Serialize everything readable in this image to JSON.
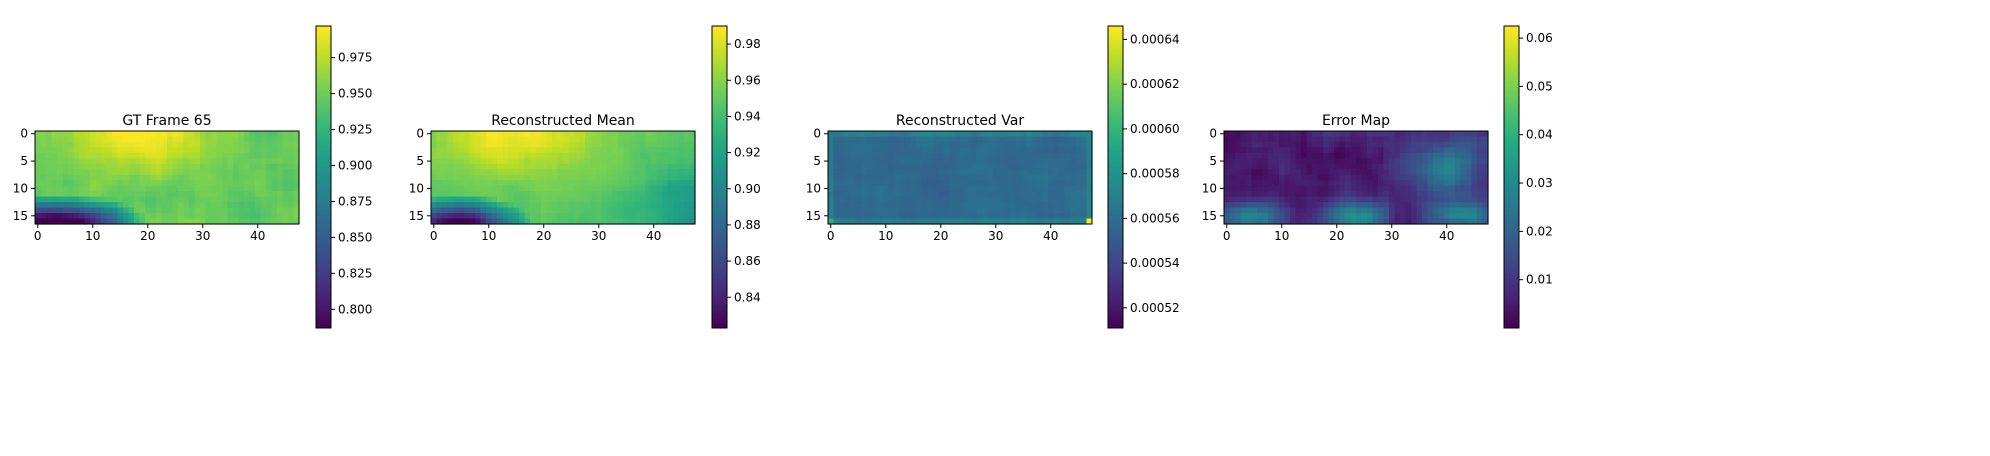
{
  "chart_data": [
    {
      "type": "heatmap",
      "title": "GT Frame 65",
      "colormap": "viridis",
      "grid_shape": [
        17,
        48
      ],
      "vmin": 0.787,
      "vmax": 0.997,
      "x_ticks": [
        "0",
        "10",
        "20",
        "30",
        "40"
      ],
      "y_ticks": [
        "0",
        "5",
        "10",
        "15"
      ],
      "colorbar_ticks": [
        "0.800",
        "0.825",
        "0.850",
        "0.875",
        "0.900",
        "0.925",
        "0.950",
        "0.975"
      ],
      "xlim": [
        0,
        48
      ],
      "ylim": [
        0,
        17
      ],
      "pattern": "mostly high values (~0.95) with yellow band along top center, dark blue/purple region in lower-left corner"
    },
    {
      "type": "heatmap",
      "title": "Reconstructed Mean",
      "colormap": "viridis",
      "grid_shape": [
        17,
        48
      ],
      "vmin": 0.823,
      "vmax": 0.99,
      "x_ticks": [
        "0",
        "10",
        "20",
        "30",
        "40"
      ],
      "y_ticks": [
        "0",
        "5",
        "10",
        "15"
      ],
      "colorbar_ticks": [
        "0.84",
        "0.86",
        "0.88",
        "0.90",
        "0.92",
        "0.94",
        "0.96",
        "0.98"
      ],
      "xlim": [
        0,
        48
      ],
      "ylim": [
        0,
        17
      ],
      "pattern": "smoothed version of ground truth, yellow top-left/center, teal toward right, dark lower-left corner"
    },
    {
      "type": "heatmap",
      "title": "Reconstructed Var",
      "colormap": "viridis",
      "grid_shape": [
        17,
        48
      ],
      "vmin": 0.000511,
      "vmax": 0.000646,
      "x_ticks": [
        "0",
        "10",
        "20",
        "30",
        "40"
      ],
      "y_ticks": [
        "0",
        "5",
        "10",
        "15"
      ],
      "colorbar_ticks": [
        "0.00052",
        "0.00054",
        "0.00056",
        "0.00058",
        "0.00060",
        "0.00062",
        "0.00064"
      ],
      "xlim": [
        0,
        48
      ],
      "ylim": [
        0,
        17
      ],
      "pattern": "nearly uniform blue (~0.00056) with higher values along edges and bright yellow cell at bottom-right corner"
    },
    {
      "type": "heatmap",
      "title": "Error Map",
      "colormap": "viridis",
      "grid_shape": [
        17,
        48
      ],
      "vmin": 0.0,
      "vmax": 0.0625,
      "x_ticks": [
        "0",
        "10",
        "20",
        "30",
        "40"
      ],
      "y_ticks": [
        "0",
        "5",
        "10",
        "15"
      ],
      "colorbar_ticks": [
        "0.01",
        "0.02",
        "0.03",
        "0.04",
        "0.05",
        "0.06"
      ],
      "xlim": [
        0,
        48
      ],
      "ylim": [
        0,
        17
      ],
      "pattern": "mostly dark purple (low error) with teal/green blobs near right side and along bottom"
    }
  ]
}
